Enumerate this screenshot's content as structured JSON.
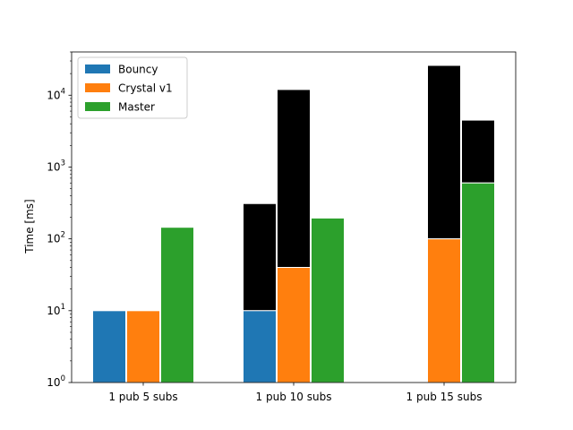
{
  "chart_data": {
    "type": "bar",
    "scale": "log",
    "title": "",
    "xlabel": "",
    "ylabel": "Time [ms]",
    "ylim": [
      1,
      40000
    ],
    "yticks": [
      {
        "base": "10",
        "exp": "0",
        "value": 1
      },
      {
        "base": "10",
        "exp": "1",
        "value": 10
      },
      {
        "base": "10",
        "exp": "2",
        "value": 100
      },
      {
        "base": "10",
        "exp": "3",
        "value": 1000
      },
      {
        "base": "10",
        "exp": "4",
        "value": 10000
      }
    ],
    "categories": [
      "1 pub 5 subs",
      "1 pub 10 subs",
      "1 pub 15 subs"
    ],
    "legend_position": "upper-left",
    "grid": false,
    "series": [
      {
        "name": "Bouncy",
        "color": "#1f77b4",
        "values": [
          10,
          10,
          null
        ],
        "upper": [
          null,
          310,
          null
        ]
      },
      {
        "name": "Crystal v1",
        "color": "#ff7f0e",
        "values": [
          10,
          40,
          100
        ],
        "upper": [
          null,
          12000,
          26000
        ]
      },
      {
        "name": "Master",
        "color": "#2ca02c",
        "values": [
          145,
          195,
          600
        ],
        "upper": [
          null,
          null,
          4500
        ]
      }
    ],
    "range_color": "#000000"
  }
}
